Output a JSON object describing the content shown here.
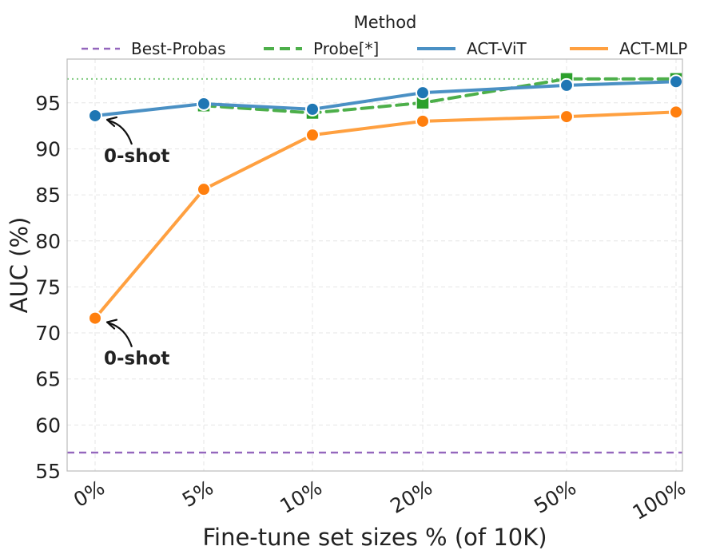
{
  "chart_data": {
    "type": "line",
    "title": "",
    "xlabel": "Fine-tune set sizes % (of 10K)",
    "ylabel": "AUC (%)",
    "categories": [
      "0%",
      "5%",
      "10%",
      "20%",
      "50%",
      "100%"
    ],
    "ylim": [
      55,
      100
    ],
    "yticks": [
      55,
      60,
      65,
      70,
      75,
      80,
      85,
      90,
      95
    ],
    "grid": true,
    "legend": {
      "title": "Method",
      "position": "top",
      "entries": [
        "Best-Probas",
        "Probe[*]",
        "ACT-ViT",
        "ACT-MLP"
      ]
    },
    "reference_lines": [
      {
        "name": "Best-Probas",
        "value": 57.0,
        "color": "#9467bd",
        "style": "dashed"
      },
      {
        "name": "Probe[*] (100%)",
        "value": 97.6,
        "color": "#7fc97f",
        "style": "dotted"
      }
    ],
    "series": [
      {
        "name": "Probe[*]",
        "color": "#4daf4a",
        "style": "dashed",
        "marker": "square",
        "values": [
          null,
          94.7,
          93.9,
          95.0,
          97.6,
          97.6
        ]
      },
      {
        "name": "ACT-ViT",
        "color": "#4a90c4",
        "marker_color": "#1f77b4",
        "style": "solid",
        "marker": "circle",
        "values": [
          93.6,
          94.9,
          94.3,
          96.1,
          96.9,
          97.3
        ]
      },
      {
        "name": "ACT-MLP",
        "color": "#ffa040",
        "marker_color": "#ff7f0e",
        "style": "solid",
        "marker": "circle",
        "values": [
          71.6,
          85.6,
          91.5,
          93.0,
          93.5,
          94.0
        ]
      }
    ],
    "annotations": [
      {
        "text": "0-shot",
        "series": "ACT-ViT",
        "category": "0%"
      },
      {
        "text": "0-shot",
        "series": "ACT-MLP",
        "category": "0%"
      }
    ]
  }
}
